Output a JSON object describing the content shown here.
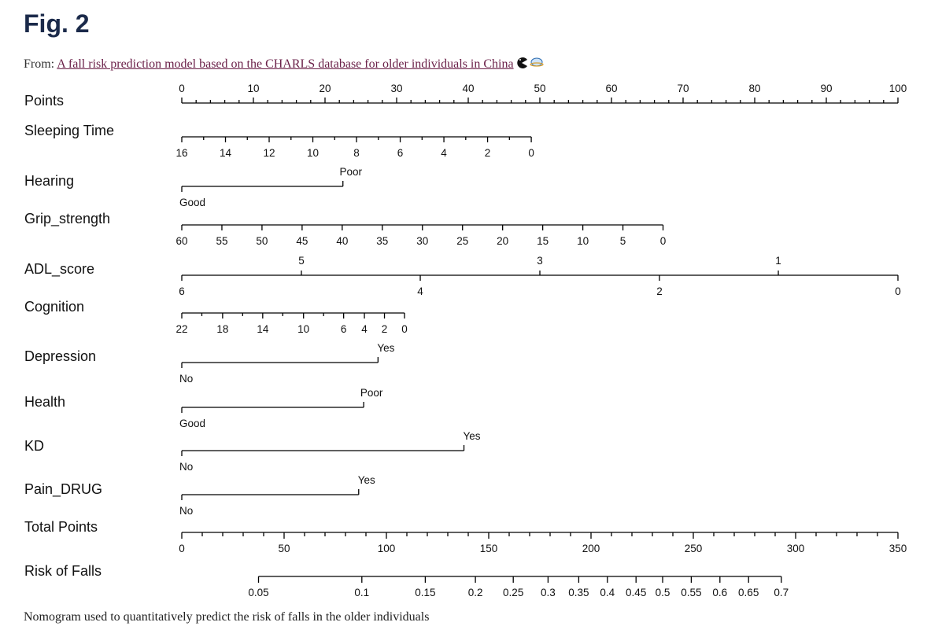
{
  "figure": {
    "title": "Fig. 2",
    "from_prefix": "From:",
    "article_link": "A fall risk prediction model based on the CHARLS database for older individuals in China",
    "caption": "Nomogram used to quantitatively predict the risk of falls in the older individuals",
    "icons": [
      "pacman-icon",
      "globe-icon"
    ]
  },
  "chart_data": {
    "type": "nomogram",
    "points_scale": [
      0,
      100
    ],
    "rows": [
      {
        "name": "Points",
        "kind": "points",
        "ticks": [
          0,
          10,
          20,
          30,
          40,
          50,
          60,
          70,
          80,
          90,
          100
        ],
        "minor_step": 2
      },
      {
        "name": "Sleeping Time",
        "kind": "continuous",
        "labels_below": [
          16,
          14,
          12,
          10,
          8,
          6,
          4,
          2,
          0
        ],
        "points": [
          0,
          6.1,
          12.2,
          18.3,
          24.4,
          30.5,
          36.6,
          42.7,
          48.8
        ],
        "minor_points": [
          3.05,
          9.15,
          15.25,
          21.35,
          27.45,
          33.55,
          39.65,
          45.75
        ]
      },
      {
        "name": "Hearing",
        "kind": "binary",
        "levels": [
          {
            "label": "Good",
            "points": 0,
            "pos": "below"
          },
          {
            "label": "Poor",
            "points": 22.5,
            "pos": "above"
          }
        ]
      },
      {
        "name": "Grip_strength",
        "kind": "continuous",
        "labels_below": [
          60,
          55,
          50,
          45,
          40,
          35,
          30,
          25,
          20,
          15,
          10,
          5,
          0
        ],
        "points": [
          0,
          5.6,
          11.2,
          16.8,
          22.4,
          28,
          33.6,
          39.2,
          44.8,
          50.4,
          56,
          61.6,
          67.2
        ]
      },
      {
        "name": "ADL_score",
        "kind": "continuous",
        "labels_above": [
          5,
          3,
          1
        ],
        "labels_below": [
          6,
          4,
          2,
          0
        ],
        "points_above": [
          16.7,
          50,
          83.3
        ],
        "points_below": [
          0,
          33.3,
          66.7,
          100
        ]
      },
      {
        "name": "Cognition",
        "kind": "continuous",
        "labels_below": [
          22,
          18,
          14,
          10,
          6,
          4,
          2,
          0
        ],
        "points": [
          0,
          5.7,
          11.3,
          17,
          22.6,
          25.5,
          28.3,
          31.1
        ],
        "minor_points": [
          2.8,
          8.5,
          14.1,
          19.8
        ]
      },
      {
        "name": "Depression",
        "kind": "binary",
        "levels": [
          {
            "label": "No",
            "points": 0,
            "pos": "below"
          },
          {
            "label": "Yes",
            "points": 27.4,
            "pos": "above"
          }
        ]
      },
      {
        "name": "Health",
        "kind": "binary",
        "levels": [
          {
            "label": "Good",
            "points": 0,
            "pos": "below"
          },
          {
            "label": "Poor",
            "points": 25.4,
            "pos": "above"
          }
        ]
      },
      {
        "name": "KD",
        "kind": "binary",
        "levels": [
          {
            "label": "No",
            "points": 0,
            "pos": "below"
          },
          {
            "label": "Yes",
            "points": 39.4,
            "pos": "above"
          }
        ]
      },
      {
        "name": "Pain_DRUG",
        "kind": "binary",
        "levels": [
          {
            "label": "No",
            "points": 0,
            "pos": "below"
          },
          {
            "label": "Yes",
            "points": 24.7,
            "pos": "above"
          }
        ]
      },
      {
        "name": "Total Points",
        "kind": "total",
        "range": [
          0,
          350
        ],
        "ticks": [
          0,
          50,
          100,
          150,
          200,
          250,
          300,
          350
        ],
        "minor_step": 10
      },
      {
        "name": "Risk of Falls",
        "kind": "risk",
        "ticks": [
          0.05,
          0.1,
          0.15,
          0.2,
          0.25,
          0.3,
          0.35,
          0.4,
          0.45,
          0.5,
          0.55,
          0.6,
          0.65,
          0.7
        ],
        "total_points": [
          37.5,
          88,
          119,
          143.5,
          162,
          179,
          194,
          208,
          222,
          235,
          249,
          263,
          277,
          293
        ]
      }
    ]
  }
}
